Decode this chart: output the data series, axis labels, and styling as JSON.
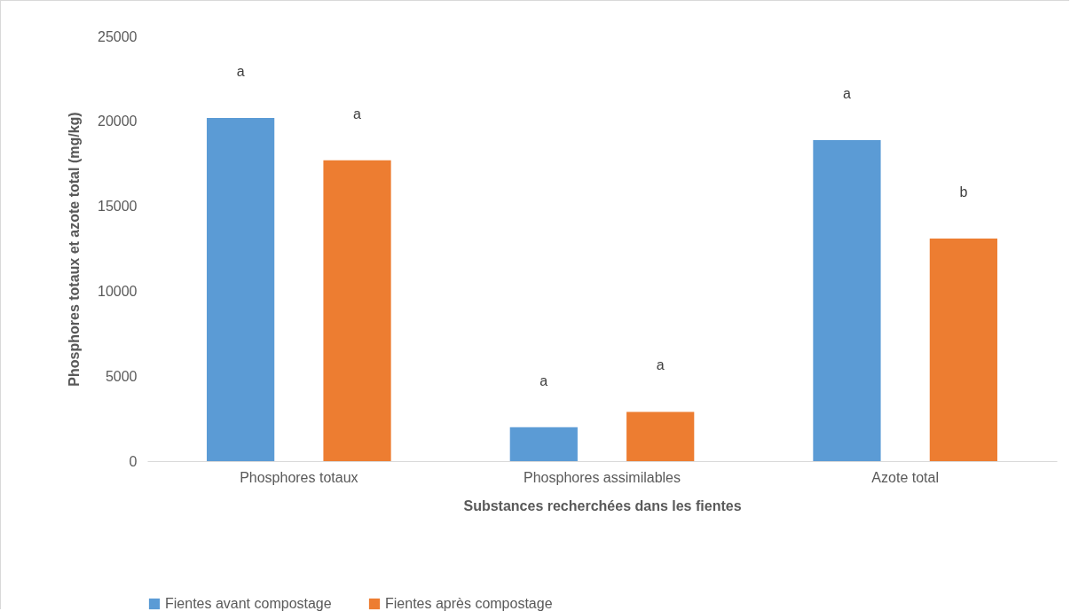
{
  "chart_data": {
    "type": "bar",
    "xlabel": "Substances recherchées dans les fientes",
    "ylabel": "Phosphores totaux et azote total (mg/kg)",
    "categories": [
      "Phosphores totaux",
      "Phosphores assimilables",
      "Azote total"
    ],
    "series": [
      {
        "name": "Fientes avant compostage",
        "color": "#5b9bd5",
        "values": [
          20200,
          2000,
          18900
        ],
        "value_labels": [
          "a",
          "a",
          "a"
        ]
      },
      {
        "name": "Fientes après compostage",
        "color": "#ed7d31",
        "values": [
          17700,
          2900,
          13100
        ],
        "value_labels": [
          "a",
          "a",
          "b"
        ]
      }
    ],
    "ylim": [
      0,
      25000
    ],
    "yticks": [
      0,
      5000,
      10000,
      15000,
      20000,
      25000
    ],
    "grid": false,
    "legend": "bottom"
  }
}
